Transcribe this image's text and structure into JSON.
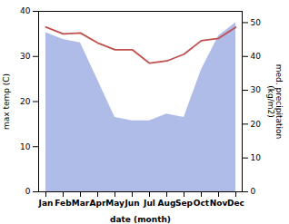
{
  "chart_data": {
    "type": "line",
    "categories": [
      "Jan",
      "Feb",
      "Mar",
      "Apr",
      "May",
      "Jun",
      "Jul",
      "Aug",
      "Sep",
      "Oct",
      "Nov",
      "Dec"
    ],
    "xlabel": "date (month)",
    "ylabel": "max temp (C)",
    "y2label": "med. precipitation\n(kg/m2)",
    "ylim": [
      0,
      40
    ],
    "yticks": [
      0,
      10,
      20,
      30,
      40
    ],
    "y2lim": [
      0,
      53.33
    ],
    "y2ticks": [
      0,
      10,
      20,
      30,
      40,
      50
    ],
    "series": [
      {
        "type": "area",
        "axis": "y2",
        "color": "#b0bce8",
        "values": [
          47,
          45,
          44,
          33,
          22,
          21,
          21,
          23,
          22,
          36,
          46,
          50
        ]
      },
      {
        "type": "line",
        "color": "#c0504d",
        "values": [
          36.5,
          35.0,
          35.2,
          33.0,
          31.5,
          31.5,
          28.5,
          29.0,
          30.5,
          33.5,
          34.0,
          36.5
        ]
      }
    ]
  }
}
